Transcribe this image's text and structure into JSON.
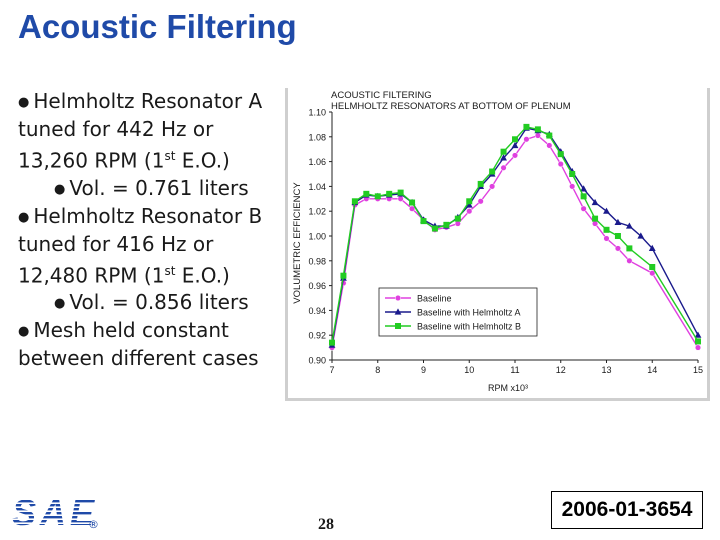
{
  "slide": {
    "title": "Acoustic Filtering",
    "page_number": "28",
    "doc_id": "2006-01-3654",
    "logo_text": "SAE",
    "logo_mark": "®",
    "bullets": [
      {
        "l1": "Helmholtz Resonator A",
        "l2": "tuned for 442 Hz or",
        "l3a": "13,260 RPM (1",
        "l3sup": "st",
        "l3b": " E.O.)",
        "sub": "Vol. = 0.761 liters"
      },
      {
        "l1": "Helmholtz Resonator B",
        "l2": "tuned for  416 Hz or",
        "l3a": "12,480 RPM (1",
        "l3sup": "st",
        "l3b": " E.O.)",
        "sub": "Vol. = 0.856 liters"
      },
      {
        "l1": "Mesh held constant",
        "l2": "between different cases"
      }
    ]
  },
  "colors": {
    "title": "#1f4aa8",
    "baseline": "#e040e0",
    "helmholtz_a": "#1a1a8c",
    "helmholtz_b": "#22cc22"
  },
  "chart_data": {
    "type": "line",
    "title": "ACOUSTIC FILTERING",
    "subtitle": "HELMHOLTZ RESONATORS AT BOTTOM OF PLENUM",
    "xlabel": "RPM x10³",
    "ylabel": "VOLUMETRIC EFFICIENCY",
    "xlim": [
      7,
      15
    ],
    "ylim": [
      0.9,
      1.1
    ],
    "xticks": [
      "7",
      "8",
      "9",
      "10",
      "11",
      "12",
      "13",
      "14",
      "15"
    ],
    "yticks": [
      "0.90",
      "0.92",
      "0.94",
      "0.96",
      "0.98",
      "1.00",
      "1.02",
      "1.04",
      "1.06",
      "1.08",
      "1.10"
    ],
    "legend_position": "bottom-right",
    "series": [
      {
        "name": "Baseline",
        "marker": "circle",
        "color": "#e040e0",
        "x": [
          7.0,
          7.25,
          7.5,
          7.75,
          8.0,
          8.25,
          8.5,
          8.75,
          9.0,
          9.25,
          9.5,
          9.75,
          10.0,
          10.25,
          10.5,
          10.75,
          11.0,
          11.25,
          11.5,
          11.75,
          12.0,
          12.25,
          12.5,
          12.75,
          13.0,
          13.25,
          13.5,
          14.0,
          15.0
        ],
        "y": [
          0.91,
          0.962,
          1.025,
          1.03,
          1.03,
          1.03,
          1.03,
          1.022,
          1.013,
          1.005,
          1.007,
          1.01,
          1.02,
          1.028,
          1.04,
          1.055,
          1.065,
          1.078,
          1.081,
          1.073,
          1.058,
          1.04,
          1.022,
          1.01,
          0.998,
          0.99,
          0.98,
          0.97,
          0.91
        ]
      },
      {
        "name": "Baseline with Helmholtz A",
        "marker": "triangle",
        "color": "#1a1a8c",
        "x": [
          7.0,
          7.25,
          7.5,
          7.75,
          8.0,
          8.25,
          8.5,
          8.75,
          9.0,
          9.25,
          9.5,
          9.75,
          10.0,
          10.25,
          10.5,
          10.75,
          11.0,
          11.25,
          11.5,
          11.75,
          12.0,
          12.25,
          12.5,
          12.75,
          13.0,
          13.25,
          13.5,
          13.75,
          14.0,
          15.0
        ],
        "y": [
          0.912,
          0.966,
          1.027,
          1.033,
          1.032,
          1.033,
          1.034,
          1.027,
          1.013,
          1.008,
          1.008,
          1.015,
          1.025,
          1.04,
          1.05,
          1.063,
          1.073,
          1.087,
          1.085,
          1.082,
          1.068,
          1.052,
          1.038,
          1.027,
          1.02,
          1.011,
          1.008,
          1.0,
          0.99,
          0.92
        ]
      },
      {
        "name": "Baseline with Helmholtz B",
        "marker": "square",
        "color": "#22cc22",
        "x": [
          7.0,
          7.25,
          7.5,
          7.75,
          8.0,
          8.25,
          8.5,
          8.75,
          9.0,
          9.25,
          9.5,
          9.75,
          10.0,
          10.25,
          10.5,
          10.75,
          11.0,
          11.25,
          11.5,
          11.75,
          12.0,
          12.25,
          12.5,
          12.75,
          13.0,
          13.25,
          13.5,
          14.0,
          15.0
        ],
        "y": [
          0.914,
          0.968,
          1.028,
          1.034,
          1.032,
          1.034,
          1.035,
          1.027,
          1.012,
          1.006,
          1.009,
          1.014,
          1.028,
          1.042,
          1.052,
          1.068,
          1.078,
          1.088,
          1.086,
          1.081,
          1.066,
          1.05,
          1.032,
          1.014,
          1.005,
          1.0,
          0.99,
          0.975,
          0.915
        ]
      }
    ]
  }
}
